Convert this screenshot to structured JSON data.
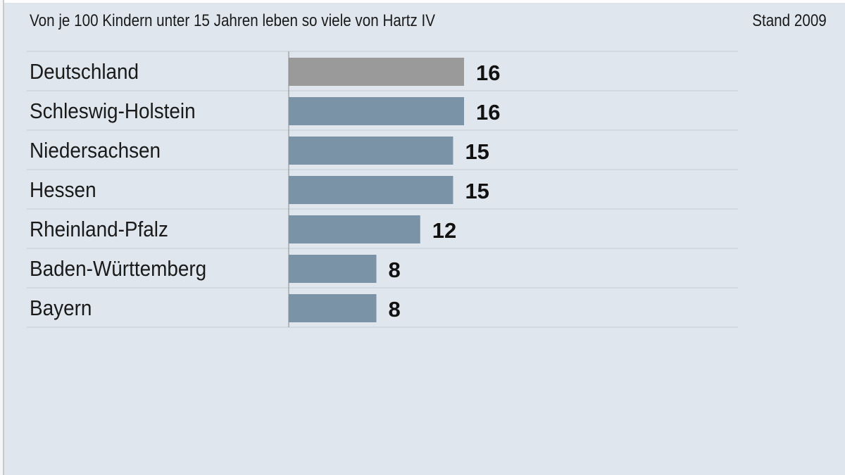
{
  "chart_data": {
    "type": "bar",
    "orientation": "horizontal",
    "title": "Von je 100 Kindern unter 15 Jahren leben so viele von Hartz IV",
    "note": "Stand 2009",
    "categories": [
      "Deutschland",
      "Schleswig-Holstein",
      "Niedersachsen",
      "Hessen",
      "Rheinland-Pfalz",
      "Baden-Württemberg",
      "Bayern"
    ],
    "values": [
      16,
      16,
      15,
      15,
      12,
      8,
      8
    ],
    "xlim": [
      0,
      16
    ],
    "grid": true,
    "colors": {
      "highlight": "#9a9a9a",
      "bar": "#7b93a7",
      "highlight_label": "#7a7a7a",
      "background": "#dfe6ed"
    }
  }
}
